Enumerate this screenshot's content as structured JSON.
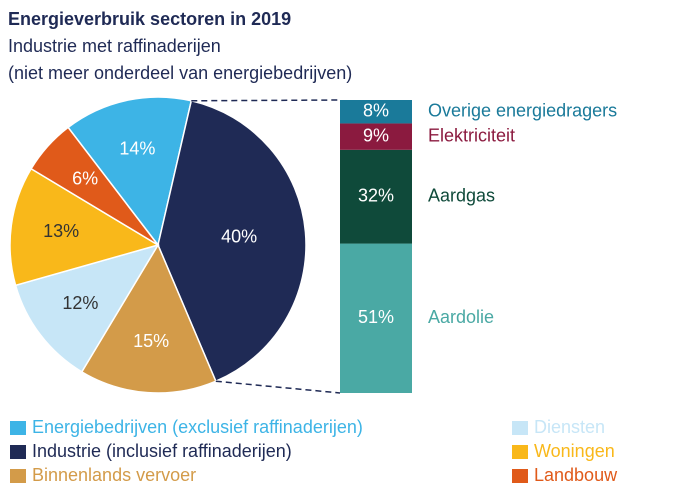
{
  "chart_data": [
    {
      "type": "pie",
      "title": "Energieverbruik sectoren in 2019",
      "subtitle": [
        "Industrie met raffinaderijen",
        "(niet meer onderdeel van energiebedrijven)"
      ],
      "categories": [
        "Energiebedrijven (exclusief raffinaderijen)",
        "Industrie (inclusief raffinaderijen)",
        "Binnenlands vervoer",
        "Diensten",
        "Woningen",
        "Landbouw"
      ],
      "values": [
        14,
        40,
        15,
        12,
        13,
        6
      ],
      "value_labels": [
        "14%",
        "40%",
        "15%",
        "12%",
        "13%",
        "6%"
      ],
      "colors": [
        "#3db4e6",
        "#1f2a55",
        "#d39b49",
        "#c7e6f7",
        "#f9b81a",
        "#e05a1a"
      ]
    },
    {
      "type": "stacked-bar",
      "series": [
        {
          "name": "Aardolie",
          "color": "#4aa9a4",
          "values": [
            51
          ],
          "value_labels": [
            "51%"
          ]
        },
        {
          "name": "Aardgas",
          "color": "#0f4a3a",
          "values": [
            32
          ],
          "value_labels": [
            "32%"
          ]
        },
        {
          "name": "Elektriciteit",
          "color": "#8b1a3f",
          "values": [
            9
          ],
          "value_labels": [
            "9%"
          ]
        },
        {
          "name": "Overige energiedragers",
          "color": "#1a7a9a",
          "values": [
            8
          ],
          "value_labels": [
            "8%"
          ]
        }
      ]
    }
  ]
}
